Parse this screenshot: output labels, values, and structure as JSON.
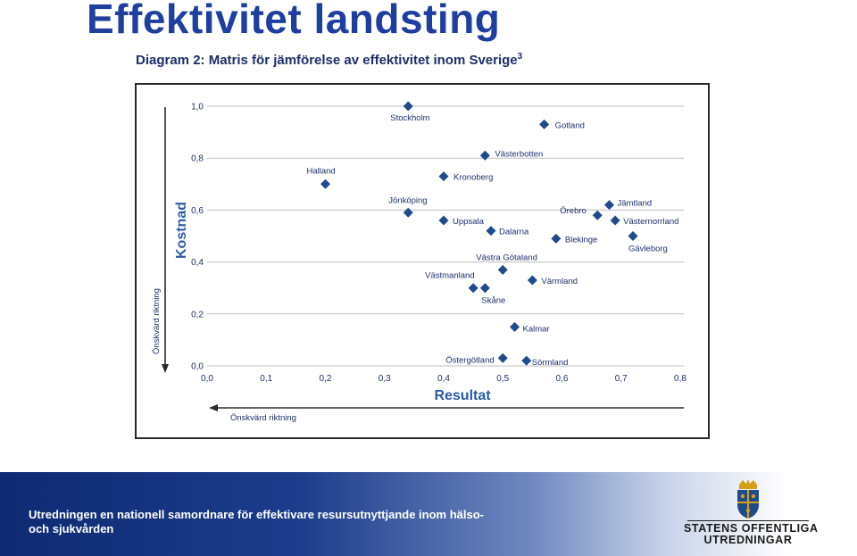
{
  "slide": {
    "title": "Effektivitet landsting",
    "figure_title_main": "Diagram 2: Matris för jämförelse av effektivitet inom Sverige",
    "figure_title_sup": "3"
  },
  "chart_data": {
    "type": "scatter",
    "title": "Diagram 2: Matris för jämförelse av effektivitet inom Sverige",
    "xlabel": "Resultat",
    "ylabel": "Kostnad",
    "x_direction_label": "Önskvärd riktning",
    "y_direction_label": "Önskvärd riktning",
    "xlim": [
      0.0,
      0.8
    ],
    "ylim": [
      0.0,
      1.0
    ],
    "x_ticks": [
      "0,0",
      "0,1",
      "0,2",
      "0,3",
      "0,4",
      "0,5",
      "0,6",
      "0,7",
      "0,8"
    ],
    "y_ticks": [
      "0,0",
      "0,2",
      "0,4",
      "0,6",
      "0,8",
      "1,0"
    ],
    "grid": true,
    "legend": "none",
    "marker_color": "#1f4a8c",
    "points": [
      {
        "label": "Stockholm",
        "x": 0.34,
        "y": 1.0
      },
      {
        "label": "Gotland",
        "x": 0.57,
        "y": 0.93
      },
      {
        "label": "Västerbotten",
        "x": 0.47,
        "y": 0.81
      },
      {
        "label": "Halland",
        "x": 0.2,
        "y": 0.7
      },
      {
        "label": "Kronoberg",
        "x": 0.4,
        "y": 0.73
      },
      {
        "label": "Jönköping",
        "x": 0.34,
        "y": 0.59
      },
      {
        "label": "Uppsala",
        "x": 0.4,
        "y": 0.56
      },
      {
        "label": "Dalarna",
        "x": 0.48,
        "y": 0.52
      },
      {
        "label": "Jämtland",
        "x": 0.68,
        "y": 0.62
      },
      {
        "label": "Örebro",
        "x": 0.66,
        "y": 0.58
      },
      {
        "label": "Västernorrland",
        "x": 0.69,
        "y": 0.56
      },
      {
        "label": "Blekinge",
        "x": 0.59,
        "y": 0.49
      },
      {
        "label": "Gävleborg",
        "x": 0.72,
        "y": 0.5
      },
      {
        "label": "Västra Götaland",
        "x": 0.5,
        "y": 0.37
      },
      {
        "label": "Västmanland",
        "x": 0.45,
        "y": 0.3
      },
      {
        "label": "Skåne",
        "x": 0.47,
        "y": 0.3
      },
      {
        "label": "Värmland",
        "x": 0.55,
        "y": 0.33
      },
      {
        "label": "Kalmar",
        "x": 0.52,
        "y": 0.15
      },
      {
        "label": "Östergötland",
        "x": 0.5,
        "y": 0.03
      },
      {
        "label": "Sörmland",
        "x": 0.54,
        "y": 0.02
      }
    ]
  },
  "footer": {
    "text": "Utredningen en nationell samordnare för effektivare resursutnyttjande inom hälso- och sjukvården",
    "logo_line1": "STATENS OFFENTLIGA",
    "logo_line2": "UTREDNINGAR"
  }
}
